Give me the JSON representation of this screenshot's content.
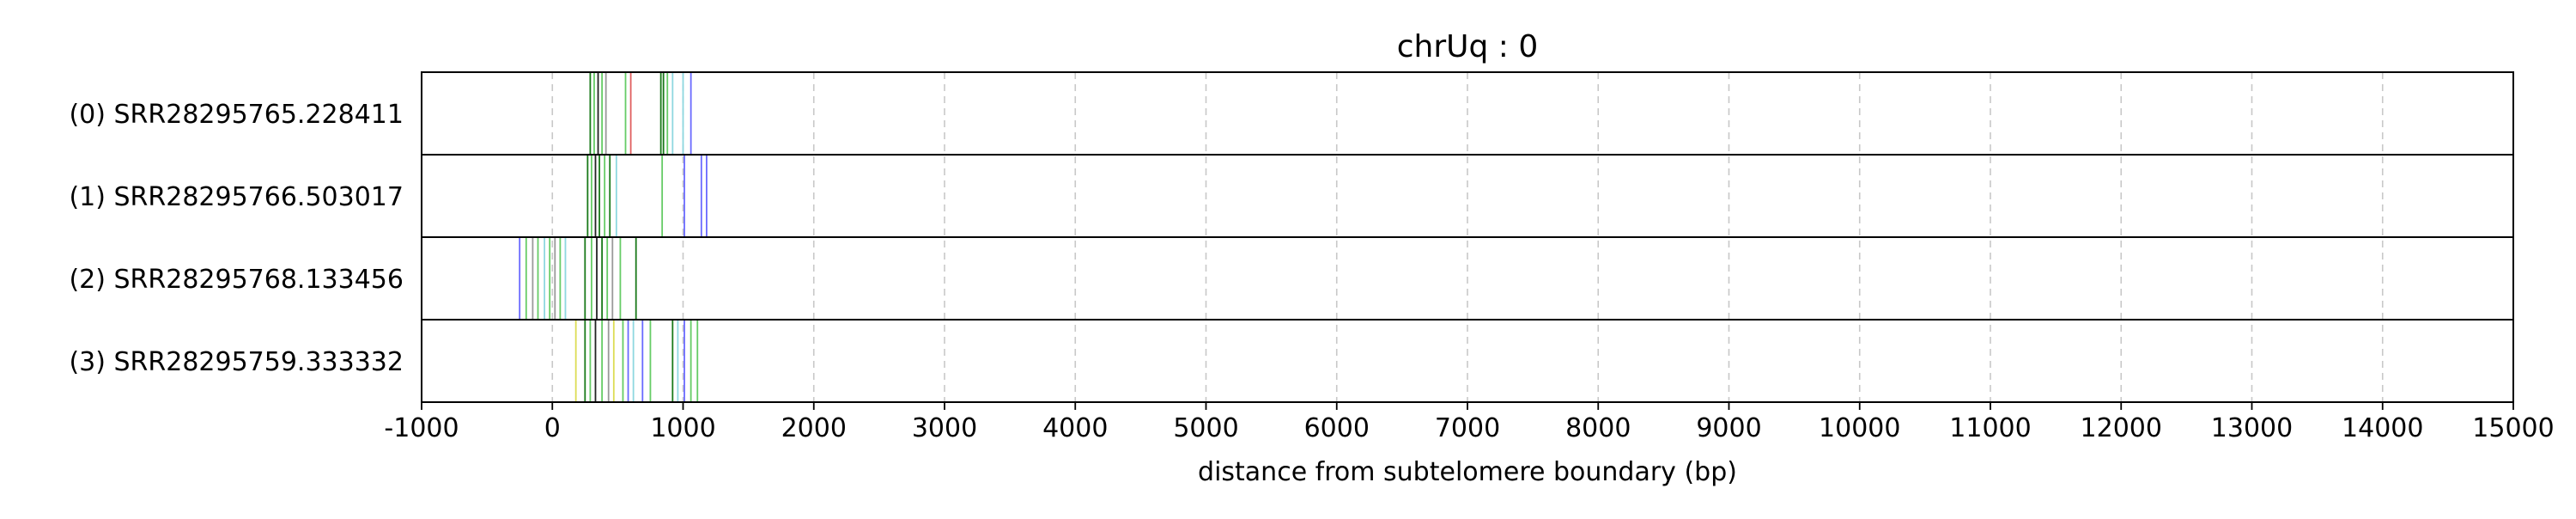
{
  "chart_data": {
    "type": "event-track",
    "title": "chrUq : 0",
    "xlabel": "distance from subtelomere boundary (bp)",
    "ylabel": "",
    "xlim": [
      -1000,
      15000
    ],
    "xticks": [
      -1000,
      0,
      1000,
      2000,
      3000,
      4000,
      5000,
      6000,
      7000,
      8000,
      9000,
      10000,
      11000,
      12000,
      13000,
      14000,
      15000
    ],
    "grid": "vertical dashed at x ticks",
    "legend": "none",
    "colors": {
      "dark_green": "#1a7a1a",
      "green": "#66cc66",
      "red": "#e06060",
      "blue": "#6a6aff",
      "cyan": "#8ed8e0",
      "yellow": "#dddd55",
      "black": "#222222",
      "gray": "#9a9a9a"
    },
    "tracks": [
      {
        "label": "(0) SRR28295765.228411",
        "events": [
          {
            "x": 290,
            "color": "dark_green"
          },
          {
            "x": 320,
            "color": "green"
          },
          {
            "x": 350,
            "color": "black"
          },
          {
            "x": 380,
            "color": "green"
          },
          {
            "x": 410,
            "color": "gray"
          },
          {
            "x": 560,
            "color": "green"
          },
          {
            "x": 600,
            "color": "red"
          },
          {
            "x": 830,
            "color": "dark_green"
          },
          {
            "x": 850,
            "color": "dark_green"
          },
          {
            "x": 880,
            "color": "green"
          },
          {
            "x": 920,
            "color": "cyan"
          },
          {
            "x": 1000,
            "color": "cyan"
          },
          {
            "x": 1060,
            "color": "blue"
          }
        ]
      },
      {
        "label": "(1) SRR28295766.503017",
        "events": [
          {
            "x": 270,
            "color": "dark_green"
          },
          {
            "x": 300,
            "color": "green"
          },
          {
            "x": 330,
            "color": "black"
          },
          {
            "x": 360,
            "color": "dark_green"
          },
          {
            "x": 400,
            "color": "green"
          },
          {
            "x": 440,
            "color": "dark_green"
          },
          {
            "x": 490,
            "color": "cyan"
          },
          {
            "x": 840,
            "color": "green"
          },
          {
            "x": 1010,
            "color": "blue"
          },
          {
            "x": 1140,
            "color": "blue"
          },
          {
            "x": 1180,
            "color": "blue"
          }
        ]
      },
      {
        "label": "(2) SRR28295768.133456",
        "events": [
          {
            "x": -250,
            "color": "blue"
          },
          {
            "x": -200,
            "color": "green"
          },
          {
            "x": -150,
            "color": "gray"
          },
          {
            "x": -110,
            "color": "green"
          },
          {
            "x": -60,
            "color": "cyan"
          },
          {
            "x": -20,
            "color": "green"
          },
          {
            "x": 20,
            "color": "gray"
          },
          {
            "x": 60,
            "color": "green"
          },
          {
            "x": 100,
            "color": "cyan"
          },
          {
            "x": 250,
            "color": "dark_green"
          },
          {
            "x": 300,
            "color": "green"
          },
          {
            "x": 340,
            "color": "black"
          },
          {
            "x": 380,
            "color": "dark_green"
          },
          {
            "x": 420,
            "color": "green"
          },
          {
            "x": 460,
            "color": "gray"
          },
          {
            "x": 520,
            "color": "green"
          },
          {
            "x": 640,
            "color": "dark_green"
          }
        ]
      },
      {
        "label": "(3) SRR28295759.333332",
        "events": [
          {
            "x": 180,
            "color": "yellow"
          },
          {
            "x": 250,
            "color": "dark_green"
          },
          {
            "x": 290,
            "color": "green"
          },
          {
            "x": 330,
            "color": "black"
          },
          {
            "x": 380,
            "color": "green"
          },
          {
            "x": 430,
            "color": "gray"
          },
          {
            "x": 470,
            "color": "yellow"
          },
          {
            "x": 540,
            "color": "green"
          },
          {
            "x": 580,
            "color": "blue"
          },
          {
            "x": 620,
            "color": "cyan"
          },
          {
            "x": 690,
            "color": "blue"
          },
          {
            "x": 750,
            "color": "green"
          },
          {
            "x": 920,
            "color": "dark_green"
          },
          {
            "x": 960,
            "color": "cyan"
          },
          {
            "x": 1010,
            "color": "blue"
          },
          {
            "x": 1060,
            "color": "green"
          },
          {
            "x": 1110,
            "color": "green"
          }
        ]
      }
    ]
  }
}
